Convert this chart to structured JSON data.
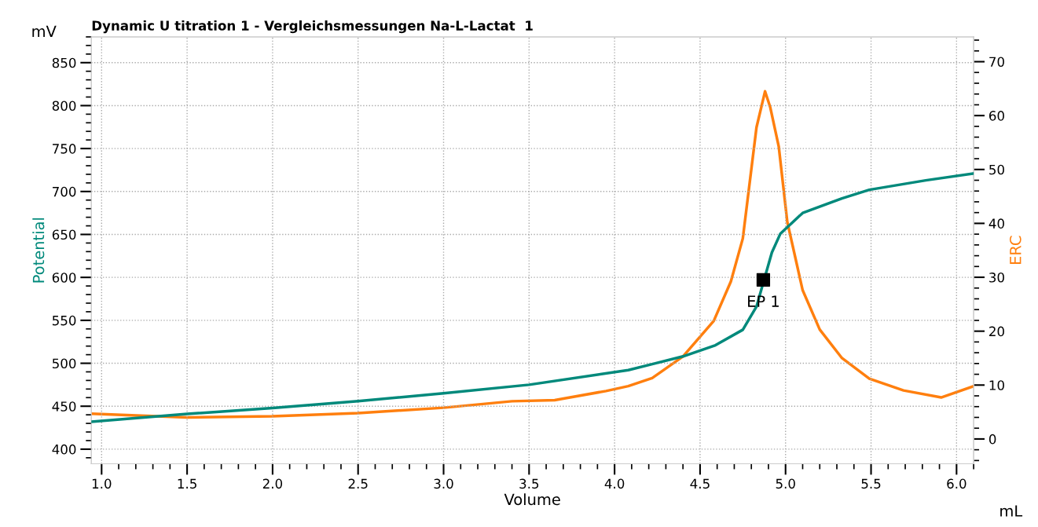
{
  "chart_data": {
    "type": "line",
    "title": "Dynamic U titration 1 - Vergleichsmessungen Na-L-Lactat  1",
    "xlabel": "Volume",
    "ylabel": "Potential",
    "y2label": "ERC",
    "annotations": [
      "mV",
      "mL",
      {
        "text": "EP 1",
        "x": 4.87,
        "y": 597
      }
    ],
    "xlim": [
      0.94,
      6.1
    ],
    "xticks": [
      {
        "value": 1,
        "label": "1.0"
      },
      {
        "value": 1.5,
        "label": "1.5"
      },
      {
        "value": 2,
        "label": "2.0"
      },
      {
        "value": 2.5,
        "label": "2.5"
      },
      {
        "value": 3,
        "label": "3.0"
      },
      {
        "value": 3.5,
        "label": "3.5"
      },
      {
        "value": 4,
        "label": "4.0"
      },
      {
        "value": 4.5,
        "label": "4.5"
      },
      {
        "value": 5,
        "label": "5.0"
      },
      {
        "value": 5.5,
        "label": "5.5"
      },
      {
        "value": 6,
        "label": "6.0"
      }
    ],
    "ylim": [
      383,
      880
    ],
    "yticks": [
      400,
      450,
      500,
      550,
      600,
      650,
      700,
      750,
      800,
      850
    ],
    "y2lim": [
      -4.6,
      74.6
    ],
    "y2ticks": [
      0,
      10,
      20,
      30,
      40,
      50,
      60,
      70
    ],
    "grid": true,
    "legend": false,
    "line_style": "solid",
    "series": [
      {
        "color": "#00897b",
        "x": [
          0.94,
          1.5,
          2.0,
          2.5,
          3.0,
          3.5,
          4.08,
          4.22,
          4.4,
          4.59,
          4.75,
          4.83,
          4.92,
          4.97,
          5.1,
          5.33,
          5.49,
          5.82,
          6.1
        ],
        "values": [
          432,
          441,
          448,
          456,
          465,
          475,
          492,
          499,
          508,
          521,
          539,
          566,
          629,
          651,
          675,
          692,
          702,
          713,
          721
        ]
      },
      {
        "color": "#ff7f0e",
        "axis": "y2",
        "x": [
          0.94,
          1.5,
          2.0,
          2.5,
          3.0,
          3.4,
          3.65,
          3.95,
          4.08,
          4.22,
          4.4,
          4.58,
          4.68,
          4.75,
          4.83,
          4.88,
          4.91,
          4.96,
          5.01,
          5.1,
          5.2,
          5.33,
          5.49,
          5.69,
          5.91,
          6.1
        ],
        "values": [
          4.7,
          4.0,
          4.2,
          4.8,
          5.8,
          7.0,
          7.2,
          8.9,
          9.8,
          11.3,
          15.3,
          21.9,
          29.2,
          37.2,
          57.8,
          64.5,
          61.6,
          54.3,
          40.3,
          27.6,
          20.3,
          15.0,
          11.2,
          9.0,
          7.7,
          9.8
        ]
      },
      {
        "type": "scatter",
        "color": "#000000",
        "marker": "square",
        "x": [
          4.87
        ],
        "values": [
          597
        ]
      }
    ]
  }
}
